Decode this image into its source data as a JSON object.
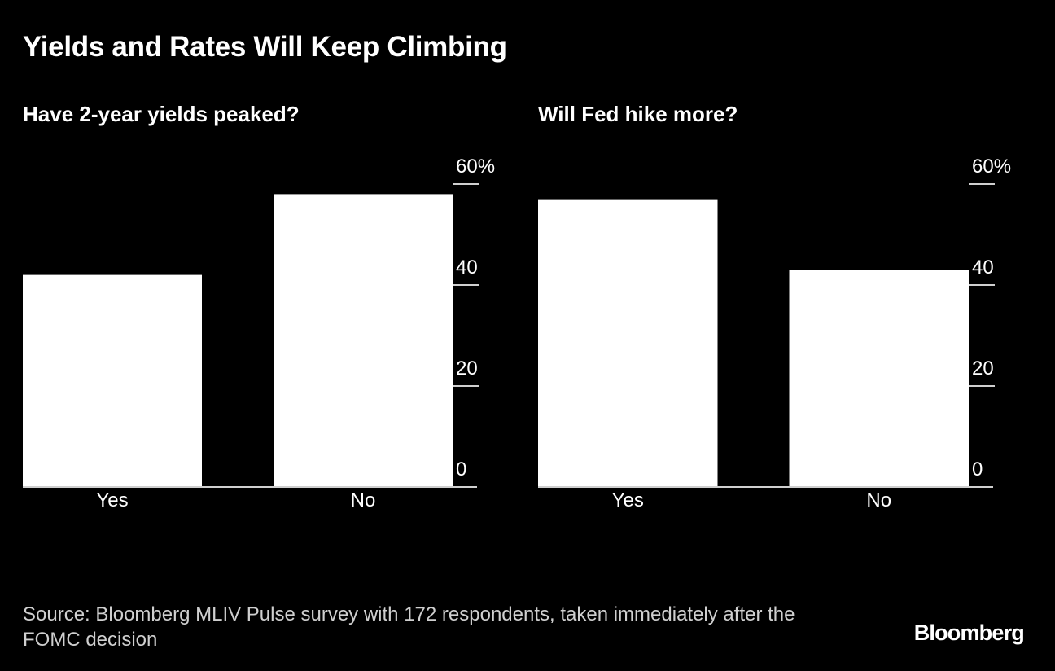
{
  "title": "Yields and Rates Will Keep Climbing",
  "source": "Source: Bloomberg MLIV Pulse survey with 172 respondents, taken immediately after the FOMC decision",
  "logo": "Bloomberg",
  "colors": {
    "background": "#000000",
    "bar": "#ffffff",
    "text": "#ffffff"
  },
  "chart_data": [
    {
      "type": "bar",
      "title": "Have 2-year yields peaked?",
      "categories": [
        "Yes",
        "No"
      ],
      "values": [
        42,
        58
      ],
      "ylim": [
        0,
        60
      ],
      "yticks": [
        0,
        20,
        40,
        60
      ],
      "ytick_labels": [
        "0",
        "20",
        "40",
        "60%"
      ],
      "yaxis_position": "right",
      "grid": false
    },
    {
      "type": "bar",
      "title": "Will Fed hike more?",
      "categories": [
        "Yes",
        "No"
      ],
      "values": [
        57,
        43
      ],
      "ylim": [
        0,
        60
      ],
      "yticks": [
        0,
        20,
        40,
        60
      ],
      "ytick_labels": [
        "0",
        "20",
        "40",
        "60%"
      ],
      "yaxis_position": "right",
      "grid": false
    }
  ]
}
